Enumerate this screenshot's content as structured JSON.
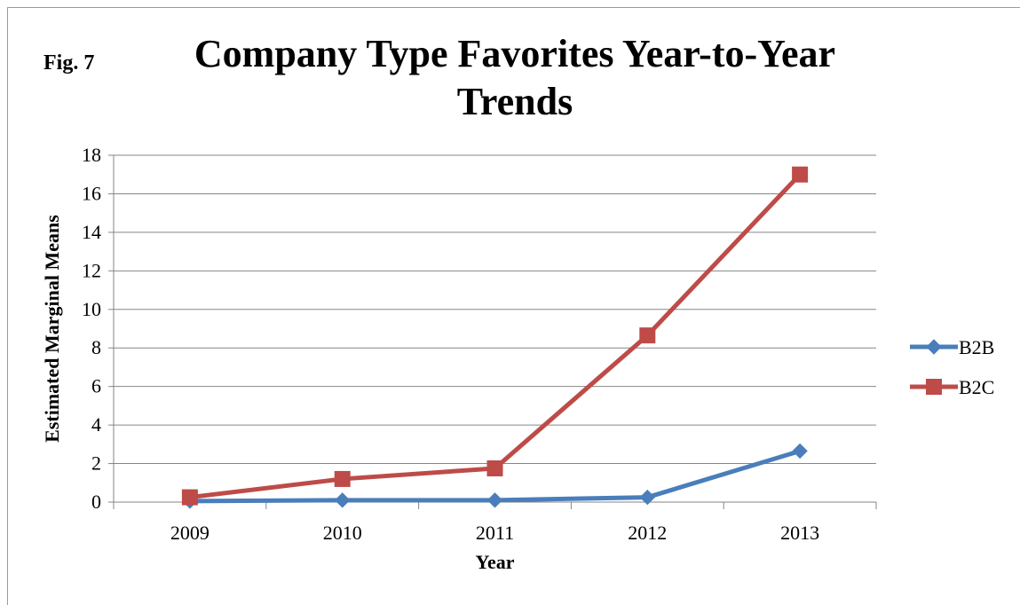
{
  "figure_label": "Fig. 7",
  "colors": {
    "B2B": "#4A7EBB",
    "B2C": "#BE4B48",
    "grid": "#868686"
  },
  "chart_data": {
    "type": "line",
    "title": "Company Type Favorites Year-to-Year Trends",
    "xlabel": "Year",
    "ylabel": "Estimated Marginal Means",
    "categories": [
      "2009",
      "2010",
      "2011",
      "2012",
      "2013"
    ],
    "ylim": [
      0,
      18
    ],
    "yticks": [
      0,
      2,
      4,
      6,
      8,
      10,
      12,
      14,
      16,
      18
    ],
    "grid": true,
    "legend_position": "right",
    "series": [
      {
        "name": "B2B",
        "marker": "diamond",
        "values": [
          0.05,
          0.1,
          0.1,
          0.25,
          2.65
        ]
      },
      {
        "name": "B2C",
        "marker": "square",
        "values": [
          0.25,
          1.2,
          1.75,
          8.65,
          17.0
        ]
      }
    ]
  }
}
